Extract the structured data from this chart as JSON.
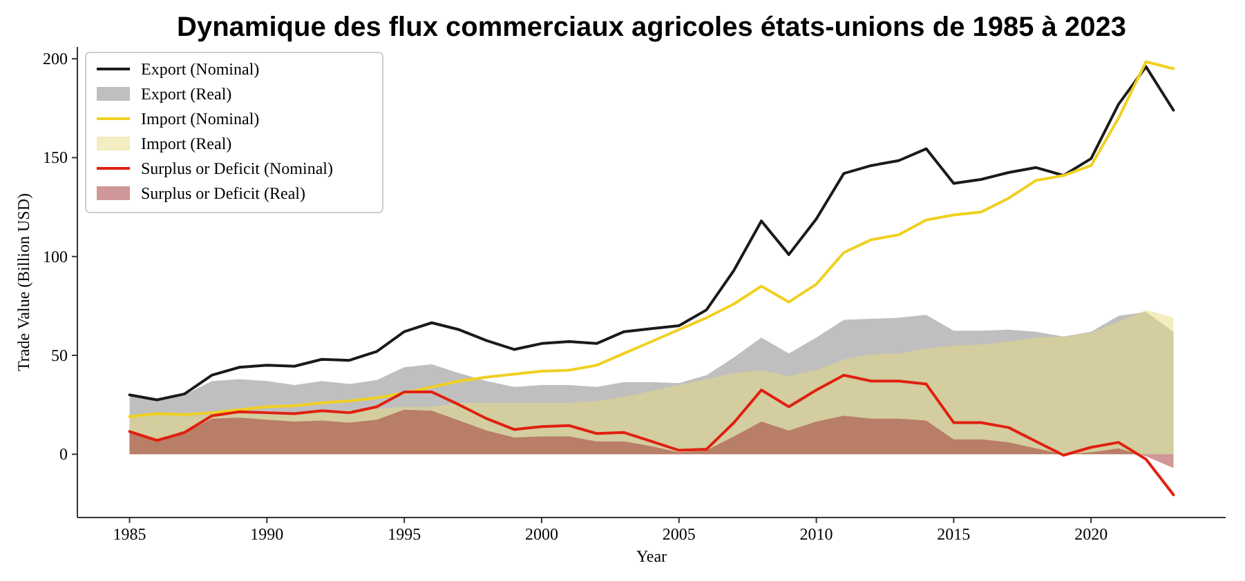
{
  "chart_data": {
    "type": "line",
    "title": "Dynamique des flux commerciaux agricoles états-unions de 1985 à 2023",
    "xlabel": "Year",
    "ylabel": "Trade Value (Billion USD)",
    "x": [
      1985,
      1986,
      1987,
      1988,
      1989,
      1990,
      1991,
      1992,
      1993,
      1994,
      1995,
      1996,
      1997,
      1998,
      1999,
      2000,
      2001,
      2002,
      2003,
      2004,
      2005,
      2006,
      2007,
      2008,
      2009,
      2010,
      2011,
      2012,
      2013,
      2014,
      2015,
      2016,
      2017,
      2018,
      2019,
      2020,
      2021,
      2022,
      2023
    ],
    "xlim": [
      1983.1,
      2024.9
    ],
    "xticks": [
      1985,
      1990,
      1995,
      2000,
      2005,
      2010,
      2015,
      2020
    ],
    "ylim": [
      -32,
      206
    ],
    "yticks": [
      0,
      50,
      100,
      150,
      200
    ],
    "grid": false,
    "legend": "top left",
    "series": [
      {
        "name": "Export (Nominal)",
        "color": "#1a1a1a",
        "values": [
          30,
          27.5,
          30.5,
          40,
          44,
          45,
          44.5,
          48,
          47.5,
          52,
          62,
          66.5,
          63,
          57.5,
          53,
          56,
          57,
          56,
          62,
          63.5,
          65,
          73,
          93,
          118,
          101,
          119,
          142,
          146,
          148.5,
          154.5,
          137,
          139,
          142.5,
          145,
          141,
          149.5,
          177,
          196,
          174
        ]
      },
      {
        "name": "Export (Real)",
        "type": "area",
        "color": "#808080",
        "values": [
          30,
          27,
          30,
          37,
          38,
          37,
          35,
          37,
          35.5,
          37.5,
          44,
          45.5,
          41,
          37,
          34,
          35,
          35,
          34,
          36.5,
          36.5,
          36,
          40,
          49,
          59,
          51,
          59,
          68,
          68.5,
          69,
          70.5,
          62.5,
          62.5,
          63,
          62,
          59.5,
          62,
          70,
          72,
          62
        ]
      },
      {
        "name": "Import (Nominal)",
        "color": "#f0d020",
        "values": [
          19,
          20.5,
          20,
          21,
          22.5,
          24,
          24.5,
          26,
          27,
          28.5,
          31,
          34,
          37,
          39,
          40.5,
          42,
          42.5,
          45,
          51,
          57,
          63,
          69,
          76,
          85,
          77,
          86,
          102,
          108.5,
          111,
          118.5,
          121,
          122.5,
          129.5,
          138.5,
          141,
          146,
          170,
          198.5,
          195
        ]
      },
      {
        "name": "Import (Real)",
        "type": "area",
        "color": "#e8dc80",
        "values": [
          20,
          20,
          19,
          20,
          21,
          21,
          21,
          22,
          22,
          23,
          24,
          24,
          26,
          26,
          26,
          26,
          26,
          27,
          29,
          32,
          35,
          38,
          41,
          42.5,
          39.5,
          42.5,
          48,
          50.5,
          51,
          53.5,
          55,
          55.5,
          57,
          59,
          59.5,
          61.5,
          67,
          73,
          69
        ]
      },
      {
        "name": "Surplus or Deficit (Nominal)",
        "color": "#e02010",
        "values": [
          11.5,
          7,
          11,
          19.5,
          21.5,
          21,
          20.5,
          22,
          21,
          24,
          31.5,
          31.5,
          25,
          18,
          12.5,
          14,
          14.5,
          10.5,
          11,
          6.5,
          2,
          2.5,
          16,
          32.5,
          24,
          32.5,
          40,
          37,
          37,
          35.5,
          16,
          16,
          13.5,
          6.5,
          -0.5,
          3.5,
          6,
          -2.5,
          -20.5
        ]
      },
      {
        "name": "Surplus or Deficit (Real)",
        "type": "area",
        "color": "#a03030",
        "values": [
          11,
          7,
          11,
          18,
          18.5,
          17.5,
          16.5,
          17,
          16,
          17.5,
          22.5,
          22,
          17,
          12,
          8.5,
          9,
          9,
          6.5,
          6.5,
          4,
          1,
          2,
          9,
          16.5,
          12,
          16.5,
          19.5,
          18,
          18,
          17,
          7.5,
          7.5,
          6,
          3,
          0,
          1,
          3,
          -1,
          -7
        ]
      }
    ]
  }
}
